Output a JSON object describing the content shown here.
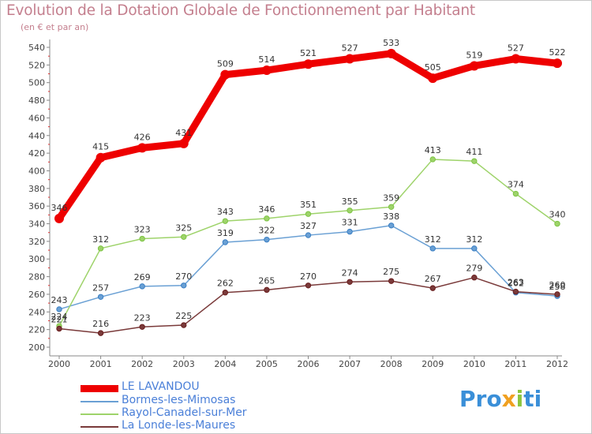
{
  "header": {
    "title": "Evolution de la Dotation Globale de Fonctionnement par Habitant",
    "subtitle": "(en € et par an)"
  },
  "logo": {
    "letters": [
      "P",
      "r",
      "o",
      "x",
      "i",
      "t",
      "i"
    ],
    "colors": [
      "#3a8fd8",
      "#3a8fd8",
      "#3a8fd8",
      "#f0a020",
      "#8cc63f",
      "#3a8fd8",
      "#3a8fd8"
    ]
  },
  "chart_data": {
    "type": "line",
    "title": "Evolution de la Dotation Globale de Fonctionnement par Habitant",
    "subtitle": "(en € et par an)",
    "x": [
      "2000",
      "2001",
      "2002",
      "2003",
      "2004",
      "2005",
      "2006",
      "2007",
      "2008",
      "2009",
      "2010",
      "2011",
      "2012"
    ],
    "ylim": [
      200,
      540
    ],
    "yticks": [
      200,
      220,
      240,
      260,
      280,
      300,
      320,
      340,
      360,
      380,
      400,
      420,
      440,
      460,
      480,
      500,
      520,
      540
    ],
    "grid": false,
    "legend_position": "bottom-left",
    "series": [
      {
        "name": "LE LAVANDOU",
        "color": "#ee0000",
        "emphasis": "thick",
        "values": [
          346,
          415,
          426,
          431,
          509,
          514,
          521,
          527,
          533,
          505,
          519,
          527,
          522
        ],
        "labels": [
          "346",
          "415",
          "426",
          "431",
          "509",
          "514",
          "521",
          "527",
          "533",
          "505",
          "519",
          "527",
          "522"
        ]
      },
      {
        "name": "Bormes-les-Mimosas",
        "color": "#6aa0d4",
        "marker": "#3a7fc4",
        "values": [
          243,
          257,
          269,
          270,
          319,
          322,
          327,
          331,
          338,
          312,
          312,
          262,
          258
        ],
        "labels": [
          "243",
          "257",
          "269",
          "270",
          "319",
          "322",
          "327",
          "331",
          "338",
          "312",
          "312",
          "262",
          "258"
        ]
      },
      {
        "name": "Rayol-Canadel-sur-Mer",
        "color": "#9ed36a",
        "marker": "#7cc443",
        "values": [
          224,
          312,
          323,
          325,
          343,
          346,
          351,
          355,
          359,
          413,
          411,
          374,
          340
        ],
        "labels": [
          "224",
          "312",
          "323",
          "325",
          "343",
          "346",
          "351",
          "355",
          "359",
          "413",
          "411",
          "374",
          "340"
        ]
      },
      {
        "name": "La Londe-les-Maures",
        "color": "#7a3a3a",
        "marker": "#6a1e1e",
        "values": [
          221,
          216,
          223,
          225,
          262,
          265,
          270,
          274,
          275,
          267,
          279,
          263,
          260
        ],
        "labels": [
          "221",
          "216",
          "223",
          "225",
          "262",
          "265",
          "270",
          "274",
          "275",
          "267",
          "279",
          "263",
          "260"
        ]
      }
    ]
  }
}
